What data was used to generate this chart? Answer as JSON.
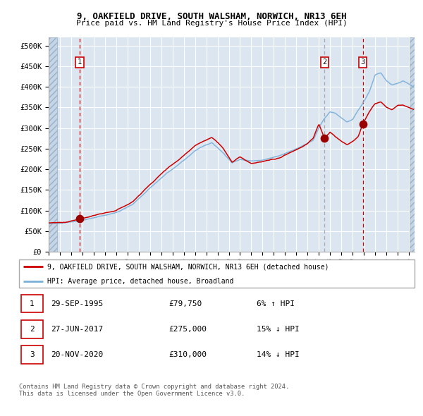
{
  "title": "9, OAKFIELD DRIVE, SOUTH WALSHAM, NORWICH, NR13 6EH",
  "subtitle": "Price paid vs. HM Land Registry's House Price Index (HPI)",
  "ylabel_ticks": [
    "£0",
    "£50K",
    "£100K",
    "£150K",
    "£200K",
    "£250K",
    "£300K",
    "£350K",
    "£400K",
    "£450K",
    "£500K"
  ],
  "ytick_values": [
    0,
    50000,
    100000,
    150000,
    200000,
    250000,
    300000,
    350000,
    400000,
    450000,
    500000
  ],
  "ylim": [
    0,
    520000
  ],
  "xlim_start": 1993.0,
  "xlim_end": 2025.5,
  "plot_bg_color": "#dce6f1",
  "hatch_color": "#c5d5e5",
  "grid_color": "#ffffff",
  "red_line_color": "#cc0000",
  "blue_line_color": "#7ab0d8",
  "sale_dot_color": "#990000",
  "vline1_color": "#cc0000",
  "vline2_color": "#aaaaaa",
  "vline3_color": "#cc0000",
  "sale1_year": 1995.75,
  "sale1_price": 79750,
  "sale2_year": 2017.5,
  "sale2_price": 275000,
  "sale3_year": 2020.9,
  "sale3_price": 310000,
  "legend_line1": "9, OAKFIELD DRIVE, SOUTH WALSHAM, NORWICH, NR13 6EH (detached house)",
  "legend_line2": "HPI: Average price, detached house, Broadland",
  "table_rows": [
    [
      "1",
      "29-SEP-1995",
      "£79,750",
      "6% ↑ HPI"
    ],
    [
      "2",
      "27-JUN-2017",
      "£275,000",
      "15% ↓ HPI"
    ],
    [
      "3",
      "20-NOV-2020",
      "£310,000",
      "14% ↓ HPI"
    ]
  ],
  "footer": "Contains HM Land Registry data © Crown copyright and database right 2024.\nThis data is licensed under the Open Government Licence v3.0.",
  "hpi_anchors": [
    [
      1993.0,
      67000
    ],
    [
      1994.0,
      70000
    ],
    [
      1995.75,
      75000
    ],
    [
      1997.0,
      82000
    ],
    [
      1999.0,
      95000
    ],
    [
      2000.5,
      115000
    ],
    [
      2002.0,
      155000
    ],
    [
      2003.5,
      190000
    ],
    [
      2004.5,
      210000
    ],
    [
      2006.0,
      245000
    ],
    [
      2007.5,
      265000
    ],
    [
      2008.5,
      240000
    ],
    [
      2009.3,
      215000
    ],
    [
      2010.0,
      225000
    ],
    [
      2011.0,
      220000
    ],
    [
      2012.0,
      222000
    ],
    [
      2013.5,
      232000
    ],
    [
      2015.0,
      250000
    ],
    [
      2016.5,
      270000
    ],
    [
      2017.0,
      300000
    ],
    [
      2017.5,
      323000
    ],
    [
      2018.0,
      340000
    ],
    [
      2018.5,
      335000
    ],
    [
      2019.0,
      325000
    ],
    [
      2019.5,
      315000
    ],
    [
      2020.0,
      320000
    ],
    [
      2020.9,
      360000
    ],
    [
      2021.5,
      390000
    ],
    [
      2022.0,
      430000
    ],
    [
      2022.5,
      435000
    ],
    [
      2023.0,
      415000
    ],
    [
      2023.5,
      405000
    ],
    [
      2024.0,
      408000
    ],
    [
      2024.5,
      415000
    ],
    [
      2025.4,
      400000
    ]
  ],
  "red_anchors": [
    [
      1993.0,
      70000
    ],
    [
      1994.5,
      72000
    ],
    [
      1995.75,
      79750
    ],
    [
      1997.0,
      87000
    ],
    [
      1999.0,
      100000
    ],
    [
      2000.5,
      122000
    ],
    [
      2002.0,
      163000
    ],
    [
      2003.5,
      200000
    ],
    [
      2004.5,
      222000
    ],
    [
      2006.0,
      258000
    ],
    [
      2007.5,
      278000
    ],
    [
      2008.5,
      252000
    ],
    [
      2009.3,
      218000
    ],
    [
      2010.0,
      230000
    ],
    [
      2011.0,
      215000
    ],
    [
      2012.0,
      218000
    ],
    [
      2013.5,
      228000
    ],
    [
      2015.0,
      248000
    ],
    [
      2016.0,
      262000
    ],
    [
      2016.5,
      275000
    ],
    [
      2017.0,
      310000
    ],
    [
      2017.5,
      275000
    ],
    [
      2018.0,
      290000
    ],
    [
      2018.5,
      278000
    ],
    [
      2019.0,
      268000
    ],
    [
      2019.5,
      260000
    ],
    [
      2020.0,
      268000
    ],
    [
      2020.5,
      278000
    ],
    [
      2020.9,
      310000
    ],
    [
      2021.5,
      340000
    ],
    [
      2022.0,
      360000
    ],
    [
      2022.5,
      365000
    ],
    [
      2023.0,
      350000
    ],
    [
      2023.5,
      345000
    ],
    [
      2024.0,
      355000
    ],
    [
      2024.5,
      355000
    ],
    [
      2025.4,
      345000
    ]
  ]
}
